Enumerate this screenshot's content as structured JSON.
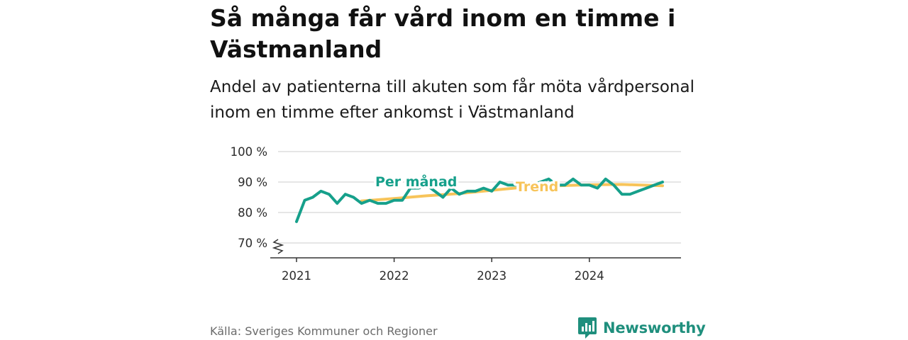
{
  "title": "Så många får vård inom en timme i Västmanland",
  "subtitle": "Andel av patienterna till akuten som får möta vårdpersonal inom en timme efter ankomst i Västmanland",
  "source": "Källa: Sveriges Kommuner och Regioner",
  "brand": {
    "name": "Newsworthy",
    "icon": "newsworthy-logo-icon",
    "color": "#1f8f7d"
  },
  "colors": {
    "monthly": "#16a08b",
    "trend": "#f7c45a",
    "grid": "#dddddd",
    "axis": "#333333"
  },
  "chart_data": {
    "type": "line",
    "ylim": [
      70,
      100
    ],
    "yticks": [
      70,
      80,
      90,
      100
    ],
    "ytick_labels": [
      "70 %",
      "80 %",
      "90 %",
      "100 %"
    ],
    "xticks": [
      2021,
      2022,
      2023,
      2024
    ],
    "xtick_labels": [
      "2021",
      "2022",
      "2023",
      "2024"
    ],
    "y_axis_break": true,
    "grid": true,
    "series": [
      {
        "name": "Per månad",
        "color": "#16a08b",
        "x": [
          "2021-01",
          "2021-02",
          "2021-03",
          "2021-04",
          "2021-05",
          "2021-06",
          "2021-07",
          "2021-08",
          "2021-09",
          "2021-10",
          "2021-11",
          "2021-12",
          "2022-01",
          "2022-02",
          "2022-03",
          "2022-04",
          "2022-05",
          "2022-06",
          "2022-07",
          "2022-08",
          "2022-09",
          "2022-10",
          "2022-11",
          "2022-12",
          "2023-01",
          "2023-02",
          "2023-03",
          "2023-04",
          "2023-05",
          "2023-06",
          "2023-07",
          "2023-08",
          "2023-09",
          "2023-10",
          "2023-11",
          "2023-12",
          "2024-01",
          "2024-02",
          "2024-03",
          "2024-04",
          "2024-05",
          "2024-06",
          "2024-07",
          "2024-08",
          "2024-09",
          "2024-10"
        ],
        "values": [
          77,
          84,
          85,
          87,
          86,
          83,
          86,
          85,
          83,
          84,
          83,
          83,
          84,
          84,
          88,
          88,
          89,
          87,
          85,
          88,
          86,
          87,
          87,
          88,
          87,
          90,
          89,
          89,
          90,
          89,
          90,
          91,
          89,
          89,
          91,
          89,
          89,
          88,
          91,
          89,
          86,
          86,
          87,
          88,
          89,
          90
        ]
      },
      {
        "name": "Trend",
        "color": "#f7c45a",
        "x": [
          "2021-09",
          "2022-01",
          "2022-05",
          "2022-09",
          "2023-01",
          "2023-05",
          "2023-09",
          "2024-01",
          "2024-05",
          "2024-10"
        ],
        "values": [
          83.8,
          84.6,
          85.5,
          86.2,
          87.3,
          88.3,
          88.8,
          89.1,
          89.2,
          88.8
        ]
      }
    ]
  }
}
